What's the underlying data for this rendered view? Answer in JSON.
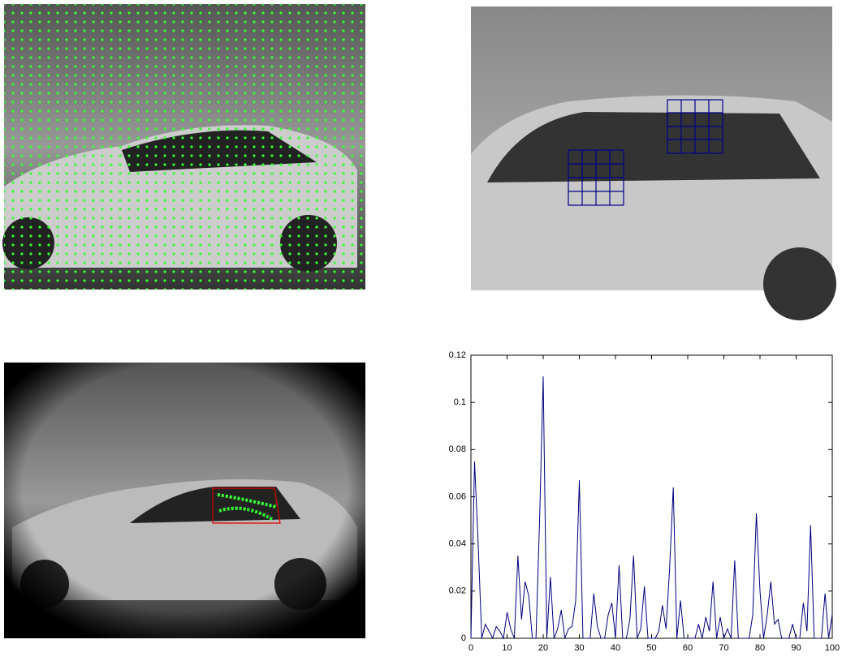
{
  "chart_data": {
    "type": "line",
    "color": "#00007f",
    "x": [
      0,
      1,
      2,
      3,
      4,
      5,
      6,
      7,
      8,
      9,
      10,
      11,
      12,
      13,
      14,
      15,
      16,
      17,
      18,
      19,
      20,
      21,
      22,
      23,
      24,
      25,
      26,
      27,
      28,
      29,
      30,
      31,
      32,
      33,
      34,
      35,
      36,
      37,
      38,
      39,
      40,
      41,
      42,
      43,
      44,
      45,
      46,
      47,
      48,
      49,
      50,
      51,
      52,
      53,
      54,
      55,
      56,
      57,
      58,
      59,
      60,
      61,
      62,
      63,
      64,
      65,
      66,
      67,
      68,
      69,
      70,
      71,
      72,
      73,
      74,
      75,
      76,
      77,
      78,
      79,
      80,
      81,
      82,
      83,
      84,
      85,
      86,
      87,
      88,
      89,
      90,
      91,
      92,
      93,
      94,
      95,
      96,
      97,
      98,
      99,
      100
    ],
    "values": [
      0,
      0.075,
      0.04,
      0,
      0.006,
      0.003,
      0,
      0.005,
      0.003,
      0,
      0.011,
      0.004,
      0,
      0.035,
      0.008,
      0.024,
      0.018,
      0,
      0,
      0.05,
      0.111,
      0,
      0.026,
      0,
      0.004,
      0.012,
      0,
      0.004,
      0.005,
      0.016,
      0.067,
      0,
      0,
      0,
      0.019,
      0.005,
      0,
      0,
      0.01,
      0.015,
      0,
      0.031,
      0,
      0,
      0.008,
      0.035,
      0,
      0.004,
      0.022,
      0,
      0,
      0,
      0.003,
      0.014,
      0.004,
      0.03,
      0.064,
      0,
      0.016,
      0,
      0,
      0,
      0,
      0.006,
      0,
      0.009,
      0.003,
      0.024,
      0,
      0.009,
      0,
      0.004,
      0,
      0.033,
      0,
      0,
      0,
      0,
      0.01,
      0.053,
      0.02,
      0,
      0.01,
      0.024,
      0.006,
      0.008,
      0,
      0,
      0,
      0.006,
      0,
      0,
      0.015,
      0.003,
      0.048,
      0,
      0,
      0,
      0.019,
      0,
      0.01
    ],
    "xlim": [
      0,
      100
    ],
    "xticks": [
      0,
      10,
      20,
      30,
      40,
      50,
      60,
      70,
      80,
      90,
      100
    ],
    "ylim": [
      0,
      0.12
    ],
    "yticks": [
      0,
      0.02,
      0.04,
      0.06,
      0.08,
      0.1,
      0.12
    ]
  }
}
